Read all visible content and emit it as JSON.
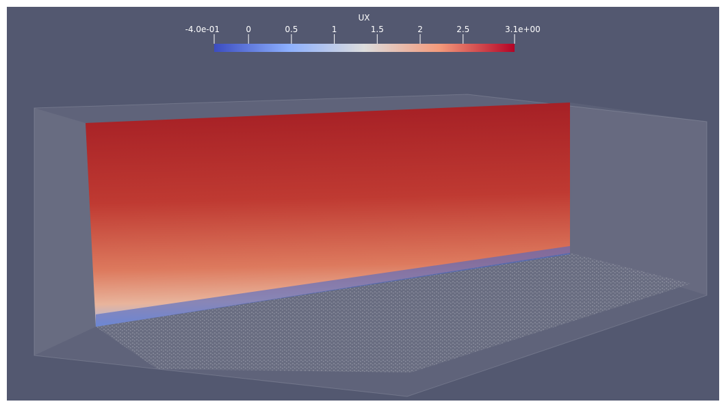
{
  "colorbar": {
    "title": "UX",
    "ticks": [
      {
        "value": -0.4,
        "label": "-4.0e-01"
      },
      0,
      0.5,
      1,
      1.5,
      2,
      2.5,
      {
        "value": 3.1,
        "label": "3.1e+00"
      }
    ]
  }
}
